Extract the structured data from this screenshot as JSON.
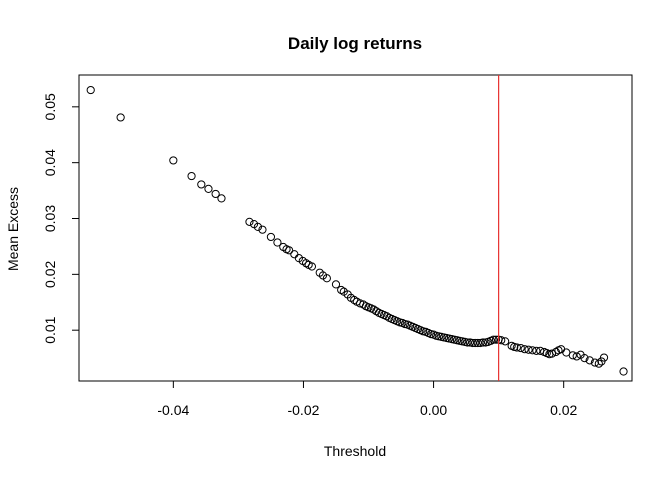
{
  "chart_data": {
    "type": "scatter",
    "title": "Daily log returns",
    "xlabel": "Threshold",
    "ylabel": "Mean Excess",
    "xlim": [
      -0.0545,
      0.0305
    ],
    "ylim": [
      0.0009,
      0.0557
    ],
    "x_ticks": [
      -0.04,
      -0.02,
      0.0,
      0.02
    ],
    "x_tick_labels": [
      "-0.04",
      "-0.02",
      "0.00",
      "0.02"
    ],
    "y_ticks": [
      0.01,
      0.02,
      0.03,
      0.04,
      0.05
    ],
    "y_tick_labels": [
      "0.01",
      "0.02",
      "0.03",
      "0.04",
      "0.05"
    ],
    "grid": false,
    "reference_line": {
      "x": 0.01,
      "color": "#e8312f"
    },
    "point_color": "#000000",
    "points": [
      [
        -0.0527,
        0.053
      ],
      [
        -0.0481,
        0.0481
      ],
      [
        -0.04,
        0.0404
      ],
      [
        -0.0372,
        0.0376
      ],
      [
        -0.0357,
        0.0361
      ],
      [
        -0.0346,
        0.0353
      ],
      [
        -0.0335,
        0.0344
      ],
      [
        -0.0326,
        0.0336
      ],
      [
        -0.0283,
        0.0294
      ],
      [
        -0.0276,
        0.029
      ],
      [
        -0.027,
        0.0285
      ],
      [
        -0.0263,
        0.028
      ],
      [
        -0.025,
        0.0267
      ],
      [
        -0.024,
        0.0257
      ],
      [
        -0.0231,
        0.0249
      ],
      [
        -0.0226,
        0.0245
      ],
      [
        -0.0222,
        0.0243
      ],
      [
        -0.0214,
        0.0236
      ],
      [
        -0.0207,
        0.0229
      ],
      [
        -0.0201,
        0.0224
      ],
      [
        -0.0196,
        0.022
      ],
      [
        -0.0192,
        0.0217
      ],
      [
        -0.0187,
        0.0214
      ],
      [
        -0.0175,
        0.0203
      ],
      [
        -0.017,
        0.0198
      ],
      [
        -0.0164,
        0.0193
      ],
      [
        -0.015,
        0.0182
      ],
      [
        -0.0142,
        0.0172
      ],
      [
        -0.0138,
        0.0169
      ],
      [
        -0.0132,
        0.0164
      ],
      [
        -0.0127,
        0.0158
      ],
      [
        -0.0122,
        0.0154
      ],
      [
        -0.0118,
        0.0151
      ],
      [
        -0.0113,
        0.0148
      ],
      [
        -0.0108,
        0.0146
      ],
      [
        -0.0104,
        0.0143
      ],
      [
        -0.01,
        0.0141
      ],
      [
        -0.0096,
        0.0139
      ],
      [
        -0.0092,
        0.0137
      ],
      [
        -0.0088,
        0.0134
      ],
      [
        -0.0084,
        0.0131
      ],
      [
        -0.008,
        0.0129
      ],
      [
        -0.0076,
        0.0127
      ],
      [
        -0.0072,
        0.0125
      ],
      [
        -0.0068,
        0.0122
      ],
      [
        -0.0064,
        0.012
      ],
      [
        -0.006,
        0.0118
      ],
      [
        -0.0056,
        0.0116
      ],
      [
        -0.0052,
        0.0114
      ],
      [
        -0.0048,
        0.0113
      ],
      [
        -0.0044,
        0.0111
      ],
      [
        -0.004,
        0.011
      ],
      [
        -0.0036,
        0.0108
      ],
      [
        -0.0032,
        0.0106
      ],
      [
        -0.0028,
        0.0104
      ],
      [
        -0.0024,
        0.0102
      ],
      [
        -0.002,
        0.01
      ],
      [
        -0.0016,
        0.0098
      ],
      [
        -0.0012,
        0.0097
      ],
      [
        -0.0008,
        0.0095
      ],
      [
        -0.0004,
        0.0093
      ],
      [
        0.0,
        0.0092
      ],
      [
        0.0004,
        0.009
      ],
      [
        0.0008,
        0.0089
      ],
      [
        0.0012,
        0.0088
      ],
      [
        0.0016,
        0.0087
      ],
      [
        0.002,
        0.0086
      ],
      [
        0.0024,
        0.0085
      ],
      [
        0.0028,
        0.0084
      ],
      [
        0.0032,
        0.0083
      ],
      [
        0.0036,
        0.0082
      ],
      [
        0.004,
        0.0081
      ],
      [
        0.0044,
        0.008
      ],
      [
        0.0048,
        0.0079
      ],
      [
        0.0052,
        0.0078
      ],
      [
        0.0056,
        0.0078
      ],
      [
        0.006,
        0.0077
      ],
      [
        0.0064,
        0.0077
      ],
      [
        0.0068,
        0.0077
      ],
      [
        0.0072,
        0.0077
      ],
      [
        0.0076,
        0.0078
      ],
      [
        0.008,
        0.0078
      ],
      [
        0.0084,
        0.0079
      ],
      [
        0.0088,
        0.0081
      ],
      [
        0.0092,
        0.0083
      ],
      [
        0.0096,
        0.0083
      ],
      [
        0.01,
        0.0083
      ],
      [
        0.0104,
        0.0082
      ],
      [
        0.011,
        0.008
      ],
      [
        0.012,
        0.0072
      ],
      [
        0.0124,
        0.007
      ],
      [
        0.0128,
        0.0069
      ],
      [
        0.0134,
        0.0068
      ],
      [
        0.014,
        0.0066
      ],
      [
        0.0146,
        0.0065
      ],
      [
        0.0152,
        0.0064
      ],
      [
        0.0158,
        0.0063
      ],
      [
        0.0164,
        0.0063
      ],
      [
        0.017,
        0.0061
      ],
      [
        0.0174,
        0.0059
      ],
      [
        0.0178,
        0.0057
      ],
      [
        0.0182,
        0.0058
      ],
      [
        0.0188,
        0.0061
      ],
      [
        0.0192,
        0.0064
      ],
      [
        0.0196,
        0.0066
      ],
      [
        0.0204,
        0.006
      ],
      [
        0.0214,
        0.0055
      ],
      [
        0.022,
        0.0053
      ],
      [
        0.0226,
        0.0056
      ],
      [
        0.0232,
        0.005
      ],
      [
        0.024,
        0.0046
      ],
      [
        0.0248,
        0.0042
      ],
      [
        0.0254,
        0.004
      ],
      [
        0.0258,
        0.0044
      ],
      [
        0.0262,
        0.0051
      ],
      [
        0.0292,
        0.0026
      ]
    ]
  }
}
